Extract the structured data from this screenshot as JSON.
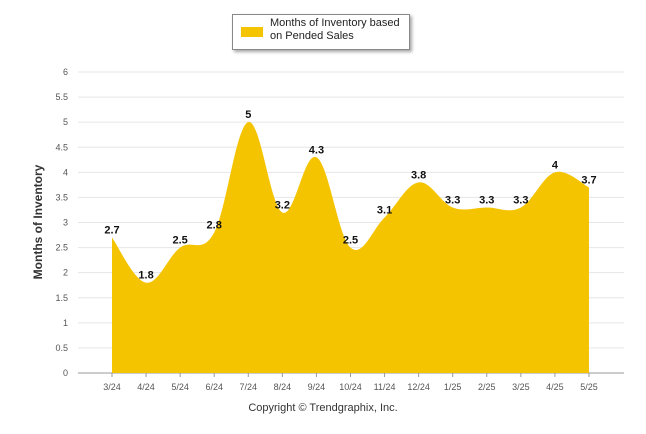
{
  "chart_data": {
    "type": "area",
    "categories": [
      "3/24",
      "4/24",
      "5/24",
      "6/24",
      "7/24",
      "8/24",
      "9/24",
      "10/24",
      "11/24",
      "12/24",
      "1/25",
      "2/25",
      "3/25",
      "4/25",
      "5/25"
    ],
    "series": [
      {
        "name": "Months of Inventory based on Pended Sales",
        "values": [
          2.7,
          1.8,
          2.5,
          2.8,
          5,
          3.2,
          4.3,
          2.5,
          3.1,
          3.8,
          3.3,
          3.3,
          3.3,
          4,
          3.7
        ],
        "color": "#f5c400"
      }
    ],
    "ylabel": "Months of Inventory",
    "ylim": [
      0,
      6
    ],
    "yticks": [
      "0",
      "0.5",
      "1",
      "1.5",
      "2",
      "2.5",
      "3",
      "3.5",
      "4",
      "4.5",
      "5",
      "5.5",
      "6"
    ],
    "grid": true,
    "legend_position": "top-center"
  },
  "legend": {
    "label": "Months of Inventory based on Pended Sales"
  },
  "footer": {
    "copyright": "Copyright © Trendgraphix, Inc."
  }
}
